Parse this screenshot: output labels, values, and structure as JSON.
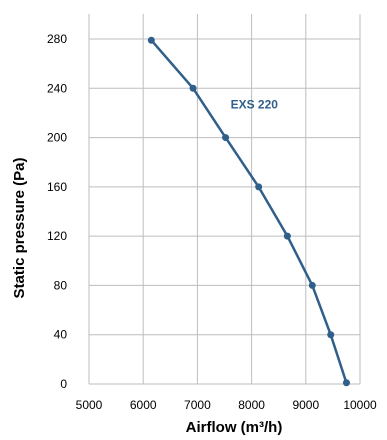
{
  "chart_data": {
    "type": "line",
    "title": "",
    "xlabel": "Airflow (m³/h)",
    "ylabel": "Static pressure (Pa)",
    "xlim": [
      5000,
      10000
    ],
    "ylim": [
      0,
      280
    ],
    "xticks": [
      5000,
      6000,
      7000,
      8000,
      9000,
      10000
    ],
    "yticks": [
      0,
      40,
      80,
      120,
      160,
      200,
      240,
      280
    ],
    "grid": true,
    "series": [
      {
        "name": "EXS 220",
        "color": "#2f5f8a",
        "x": [
          6150,
          6920,
          7520,
          8130,
          8660,
          9120,
          9460,
          9750
        ],
        "y": [
          279,
          240,
          200,
          160,
          120,
          80,
          40,
          1
        ]
      }
    ]
  }
}
